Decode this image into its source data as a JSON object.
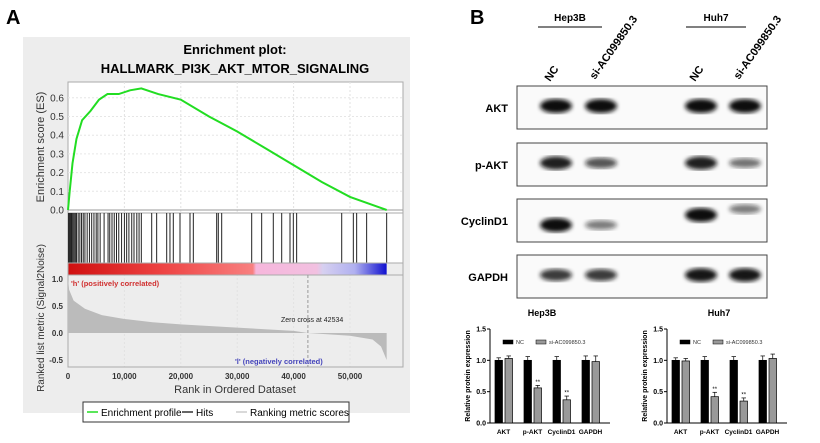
{
  "panel_labels": {
    "a": "A",
    "b": "B"
  },
  "chart_data": [
    {
      "type": "line",
      "title_line1": "Enrichment plot:",
      "title_line2": "HALLMARK_PI3K_AKT_MTOR_SIGNALING",
      "ylabel": "Enrichment score (ES)",
      "ylim": [
        0,
        0.7
      ],
      "yticks": [
        "0.0",
        "0.1",
        "0.2",
        "0.3",
        "0.4",
        "0.5",
        "0.6"
      ],
      "grid": true,
      "line_color": "#22dd22",
      "es_curve": [
        [
          0,
          0
        ],
        [
          300,
          0.1
        ],
        [
          800,
          0.25
        ],
        [
          1500,
          0.38
        ],
        [
          2500,
          0.48
        ],
        [
          4000,
          0.53
        ],
        [
          5500,
          0.59
        ],
        [
          7000,
          0.62
        ],
        [
          9000,
          0.62
        ],
        [
          11000,
          0.64
        ],
        [
          13000,
          0.65
        ],
        [
          16000,
          0.62
        ],
        [
          20000,
          0.59
        ],
        [
          25000,
          0.5
        ],
        [
          30000,
          0.42
        ],
        [
          35000,
          0.33
        ],
        [
          40000,
          0.24
        ],
        [
          45000,
          0.15
        ],
        [
          50000,
          0.07
        ],
        [
          56500,
          0
        ]
      ],
      "hits": [
        100,
        250,
        400,
        550,
        700,
        900,
        1100,
        1300,
        1500,
        1800,
        2100,
        2400,
        2700,
        3000,
        3400,
        3800,
        4200,
        4600,
        5000,
        5300,
        5700,
        6400,
        7100,
        7400,
        7800,
        8200,
        8600,
        9000,
        9500,
        10000,
        10400,
        10800,
        11300,
        11700,
        12200,
        12600,
        13000,
        14840,
        15720,
        17500,
        18080,
        18670,
        19860,
        21630,
        22220,
        26360,
        26650,
        27250,
        32570,
        34340,
        36400,
        37890,
        39360,
        39950,
        40540,
        48530,
        50590,
        51180,
        52950,
        56500
      ]
    },
    {
      "type": "area",
      "ylabel": "Ranked list metric (Signal2Noise)",
      "xlabel": "Rank in Ordered Dataset",
      "xlim": [
        0,
        58000
      ],
      "ylim": [
        -0.55,
        1.05
      ],
      "xticks": [
        "0",
        "10,000",
        "20,000",
        "30,000",
        "40,000",
        "50,000"
      ],
      "yticks": [
        "1.0",
        "0.5",
        "0.0",
        "-0.5"
      ],
      "fill_color": "#bbbbbb",
      "metric_curve": [
        [
          0,
          1.0
        ],
        [
          200,
          0.8
        ],
        [
          1000,
          0.6
        ],
        [
          3000,
          0.45
        ],
        [
          6000,
          0.33
        ],
        [
          10000,
          0.26
        ],
        [
          15000,
          0.2
        ],
        [
          20000,
          0.16
        ],
        [
          30000,
          0.1
        ],
        [
          40000,
          0.04
        ],
        [
          42534,
          0
        ],
        [
          50000,
          -0.05
        ],
        [
          54000,
          -0.12
        ],
        [
          55500,
          -0.25
        ],
        [
          56500,
          -0.5
        ]
      ],
      "positive_label": "'h' (positively correlated)",
      "negative_label": "'l' (negatively correlated)",
      "zero_cross_label": "Zero cross at 42534",
      "zero_cross": 42534,
      "legend": [
        "Enrichment profile",
        "Hits",
        "Ranking metric scores"
      ]
    },
    {
      "type": "bar",
      "title": "Hep3B",
      "ylabel": "Relative protein expression",
      "ylim": [
        0,
        1.5
      ],
      "yticks": [
        "0.0",
        "0.5",
        "1.0",
        "1.5"
      ],
      "categories": [
        "AKT",
        "p-AKT",
        "CyclinD1",
        "GAPDH"
      ],
      "series": [
        {
          "name": "NC",
          "color": "#000000",
          "values": [
            1.0,
            1.0,
            1.0,
            1.0
          ],
          "errors": [
            0.04,
            0.06,
            0.06,
            0.07
          ]
        },
        {
          "name": "si-AC099850.3",
          "color": "#999999",
          "values": [
            1.03,
            0.56,
            0.37,
            0.98
          ],
          "errors": [
            0.04,
            0.04,
            0.06,
            0.09
          ]
        }
      ],
      "significance": [
        "",
        "**",
        "**",
        ""
      ],
      "legend_placement": "top"
    },
    {
      "type": "bar",
      "title": "Huh7",
      "ylabel": "Relative protein expression",
      "ylim": [
        0,
        1.5
      ],
      "yticks": [
        "0.0",
        "0.5",
        "1.0",
        "1.5"
      ],
      "categories": [
        "AKT",
        "p-AKT",
        "CyclinD1",
        "GAPDH"
      ],
      "series": [
        {
          "name": "NC",
          "color": "#000000",
          "values": [
            1.0,
            1.0,
            1.0,
            1.0
          ],
          "errors": [
            0.04,
            0.06,
            0.06,
            0.07
          ]
        },
        {
          "name": "si-AC099850.3",
          "color": "#999999",
          "values": [
            0.99,
            0.42,
            0.35,
            1.03
          ],
          "errors": [
            0.04,
            0.07,
            0.05,
            0.07
          ]
        }
      ],
      "significance": [
        "",
        "**",
        "**",
        ""
      ],
      "legend_placement": "top"
    }
  ],
  "blot": {
    "cell_lines": [
      "Hep3B",
      "Huh7"
    ],
    "lanes": [
      "NC",
      "si-AC099850.3",
      "NC",
      "si-AC099850.3"
    ],
    "rows": [
      {
        "label": "AKT",
        "band_intensity": [
          1.0,
          1.0,
          1.0,
          1.0
        ]
      },
      {
        "label": "p-AKT",
        "band_intensity": [
          0.9,
          0.6,
          0.9,
          0.45
        ]
      },
      {
        "label": "CyclinD1",
        "band_intensity": [
          1.0,
          0.4,
          1.0,
          0.4
        ]
      },
      {
        "label": "GAPDH",
        "band_intensity": [
          0.75,
          0.75,
          0.95,
          0.95
        ]
      }
    ]
  }
}
